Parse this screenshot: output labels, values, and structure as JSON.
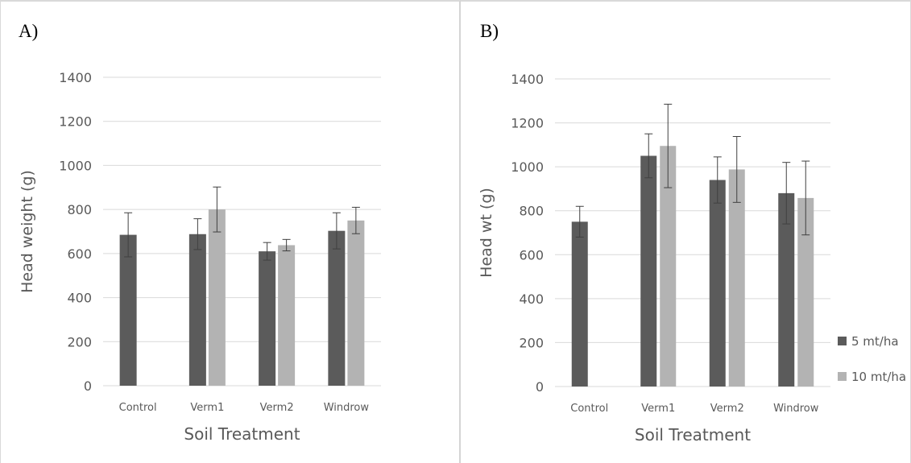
{
  "colors": {
    "series1": "#5b5b5b",
    "series2": "#b3b3b3",
    "grid": "#d9d9d9",
    "axis_text": "#595959",
    "error_bar": "#404040"
  },
  "chart_data": [
    {
      "panel": "A)",
      "type": "bar",
      "categories": [
        "Control",
        "Verm1",
        "Verm2",
        "Windrow"
      ],
      "series": [
        {
          "values": [
            685,
            688,
            610,
            703
          ],
          "errors": [
            100,
            70,
            40,
            82
          ]
        },
        {
          "values": [
            null,
            800,
            638,
            750
          ],
          "errors": [
            null,
            102,
            26,
            60
          ]
        }
      ],
      "xlabel": "Soil Treatment",
      "ylabel": "Head weight (g)",
      "ylim": [
        0,
        1400
      ],
      "yticks": [
        0,
        200,
        400,
        600,
        800,
        1000,
        1200,
        1400
      ],
      "grid": true
    },
    {
      "panel": "B)",
      "type": "bar",
      "categories": [
        "Control",
        "Verm1",
        "Verm2",
        "Windrow"
      ],
      "series": [
        {
          "name": "5 mt/ha",
          "values": [
            750,
            1050,
            940,
            880
          ],
          "errors": [
            70,
            100,
            105,
            140
          ]
        },
        {
          "name": "10 mt/ha",
          "values": [
            null,
            1095,
            988,
            858
          ],
          "errors": [
            null,
            190,
            150,
            168
          ]
        }
      ],
      "xlabel": "Soil Treatment",
      "ylabel": "Head wt (g)",
      "ylim": [
        0,
        1400
      ],
      "yticks": [
        0,
        200,
        400,
        600,
        800,
        1000,
        1200,
        1400
      ],
      "grid": true,
      "legend": "right"
    }
  ]
}
